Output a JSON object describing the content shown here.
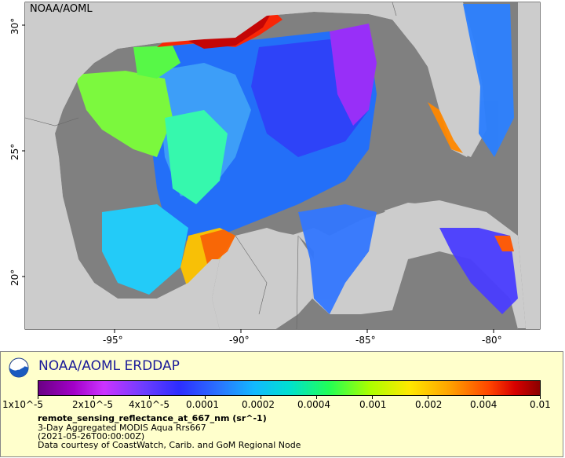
{
  "map": {
    "watermark": "NOAA/AOML",
    "x_ticks": [
      "-95°",
      "-90°",
      "-85°",
      "-80°"
    ],
    "y_ticks": [
      "30°",
      "25°",
      "20°"
    ],
    "colors": {
      "land": "#cccccc",
      "no_data": "#808080",
      "frame": "#000000"
    }
  },
  "legend": {
    "title": "NOAA/AOML ERDDAP",
    "colorbar_labels": [
      "1x10^-5",
      "2x10^-5",
      "4x10^-5",
      "0.0001",
      "0.0002",
      "0.0004",
      "0.001",
      "0.002",
      "0.004",
      "0.01"
    ],
    "variable": "remote_sensing_reflectance_at_667_nm (sr^-1)",
    "info_lines": [
      "3-Day Aggregated MODIS Aqua Rrs667",
      "(2021-05-26T00:00:00Z)",
      "Data courtesy of CoastWatch, Carib. and GoM Regional Node"
    ],
    "colors": {
      "panel_bg": "#ffffcc",
      "title": "#1a1a99"
    }
  }
}
